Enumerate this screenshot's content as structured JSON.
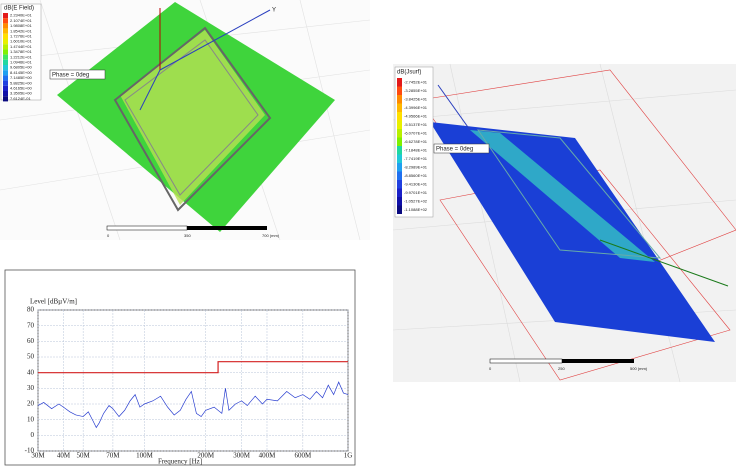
{
  "panels": [
    {
      "legend_title": "dB(E Field)",
      "legend_values": [
        "2.2340E+01",
        "2.1074E+01",
        "1.9808E+01",
        "1.8542E+01",
        "1.7276E+01",
        "1.6010E+01",
        "1.4744E+01",
        "1.3478E+01",
        "1.2212E+01",
        "1.0946E+01",
        "9.6805E+00",
        "8.4145E+00",
        "7.1485E+00",
        "5.8825E+00",
        "4.6165E+00",
        "3.3505E+00",
        "7.6124E-01"
      ],
      "phase": "Phase = 0deg",
      "scale": [
        "0",
        "350",
        "700 (mm)"
      ],
      "axis": "Y"
    },
    {
      "legend_title": "dB(Jsurf)",
      "legend_values": [
        "-2.7452E+01",
        "-3.2855E+01",
        "-3.8425E+01",
        "-4.3996E+01",
        "-4.9566E+01",
        "-5.5137E+01",
        "-6.0707E+01",
        "-6.6278E+01",
        "-7.1848E+01",
        "-7.7419E+01",
        "-8.2989E+01",
        "-8.8560E+01",
        "-9.4130E+01",
        "-9.9701E+01",
        "-1.0527E+02",
        "-1.1088E+02"
      ],
      "phase": "Phase = 0deg",
      "scale": [
        "0",
        "250",
        "500 (mm)"
      ]
    }
  ],
  "chart_data": {
    "type": "line",
    "y_label": "Level [dBµV/m]",
    "x_label": "Frequency [Hz]",
    "log_x": true,
    "grid": true,
    "xlim": [
      30000000,
      1000000000
    ],
    "ylim": [
      -10,
      80
    ],
    "xticks": [
      {
        "value": 30000000,
        "label": "30M"
      },
      {
        "value": 40000000,
        "label": "40M"
      },
      {
        "value": 50000000,
        "label": "50M"
      },
      {
        "value": 70000000,
        "label": "70M"
      },
      {
        "value": 100000000,
        "label": "100M"
      },
      {
        "value": 200000000,
        "label": "200M"
      },
      {
        "value": 300000000,
        "label": "300M"
      },
      {
        "value": 400000000,
        "label": "400M"
      },
      {
        "value": 600000000,
        "label": "600M"
      },
      {
        "value": 1000000000,
        "label": "1G"
      }
    ],
    "yticks": [
      -10,
      0,
      10,
      20,
      30,
      40,
      50,
      60,
      70,
      80
    ],
    "series": [
      {
        "color": "#d42020",
        "x": [
          30000000,
          230000000,
          230000000,
          1000000000
        ],
        "values": [
          40,
          40,
          47,
          47
        ]
      },
      {
        "color": "#2a3fd0",
        "x": [
          30000000,
          32000000,
          35000000,
          38000000,
          40000000,
          43000000,
          46000000,
          50000000,
          53000000,
          56000000,
          58000000,
          60000000,
          63000000,
          67000000,
          70000000,
          75000000,
          80000000,
          85000000,
          90000000,
          95000000,
          100000000,
          110000000,
          120000000,
          130000000,
          140000000,
          150000000,
          160000000,
          170000000,
          180000000,
          190000000,
          200000000,
          220000000,
          240000000,
          250000000,
          260000000,
          280000000,
          300000000,
          320000000,
          350000000,
          380000000,
          400000000,
          450000000,
          500000000,
          550000000,
          600000000,
          650000000,
          700000000,
          750000000,
          800000000,
          850000000,
          900000000,
          950000000,
          1000000000
        ],
        "values": [
          19,
          21,
          17,
          20,
          18,
          15,
          13,
          12,
          15,
          9,
          5,
          8,
          14,
          19,
          17,
          12,
          16,
          22,
          26,
          18,
          20,
          22,
          25,
          18,
          13,
          16,
          23,
          28,
          14,
          12,
          16,
          18,
          14,
          30,
          16,
          20,
          22,
          19,
          25,
          20,
          23,
          22,
          28,
          24,
          26,
          23,
          28,
          24,
          32,
          26,
          34,
          27,
          26
        ]
      }
    ]
  }
}
